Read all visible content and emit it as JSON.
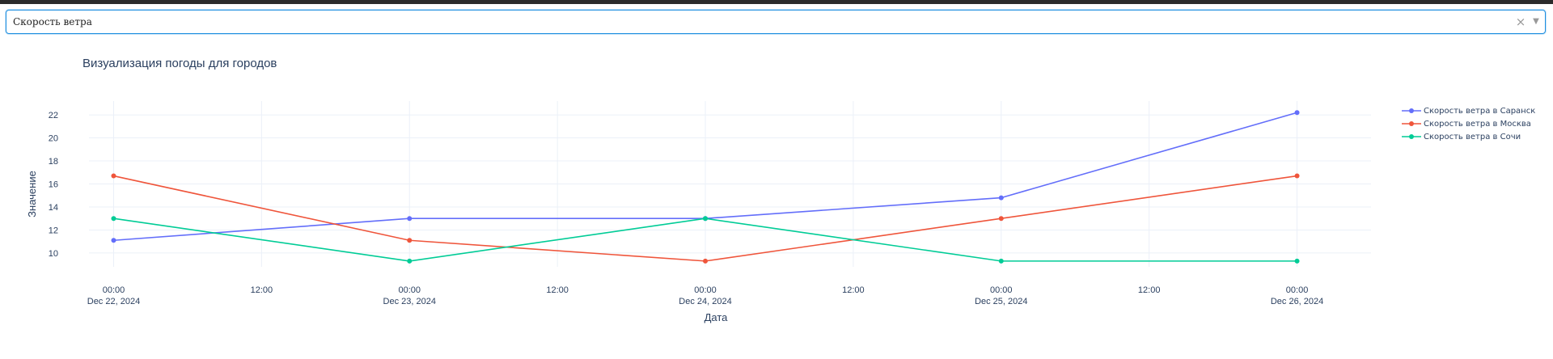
{
  "dropdown": {
    "value": "Скорость ветра",
    "clear_icon": "×",
    "arrow_icon": "▼"
  },
  "chart_data": {
    "type": "line",
    "title": "Визуализация погоды для городов",
    "xlabel": "Дата",
    "ylabel": "Значение",
    "x": [
      "2024-12-22",
      "2024-12-23",
      "2024-12-24",
      "2024-12-25",
      "2024-12-26"
    ],
    "xlim": [
      "2024-12-21 22:00",
      "2024-12-26 06:00"
    ],
    "ylim": [
      8.8,
      23.2
    ],
    "x_ticks": [
      {
        "t": "2024-12-22 00:00",
        "line1": "00:00",
        "line2": "Dec 22, 2024"
      },
      {
        "t": "2024-12-22 12:00",
        "line1": "12:00",
        "line2": ""
      },
      {
        "t": "2024-12-23 00:00",
        "line1": "00:00",
        "line2": "Dec 23, 2024"
      },
      {
        "t": "2024-12-23 12:00",
        "line1": "12:00",
        "line2": ""
      },
      {
        "t": "2024-12-24 00:00",
        "line1": "00:00",
        "line2": "Dec 24, 2024"
      },
      {
        "t": "2024-12-24 12:00",
        "line1": "12:00",
        "line2": ""
      },
      {
        "t": "2024-12-25 00:00",
        "line1": "00:00",
        "line2": "Dec 25, 2024"
      },
      {
        "t": "2024-12-25 12:00",
        "line1": "12:00",
        "line2": ""
      },
      {
        "t": "2024-12-26 00:00",
        "line1": "00:00",
        "line2": "Dec 26, 2024"
      }
    ],
    "y_ticks": [
      10,
      12,
      14,
      16,
      18,
      20,
      22
    ],
    "grid": true,
    "legend_position": "top-right",
    "series": [
      {
        "name": "Скорость ветра в Саранск",
        "color": "#636efa",
        "values": [
          11.1,
          13.0,
          13.0,
          14.8,
          22.2
        ]
      },
      {
        "name": "Скорость ветра в Москва",
        "color": "#ef553b",
        "values": [
          16.7,
          11.1,
          9.3,
          13.0,
          16.7
        ]
      },
      {
        "name": "Скорость ветра в Сочи",
        "color": "#00cc96",
        "values": [
          13.0,
          9.3,
          13.0,
          9.3,
          9.3
        ]
      }
    ]
  }
}
